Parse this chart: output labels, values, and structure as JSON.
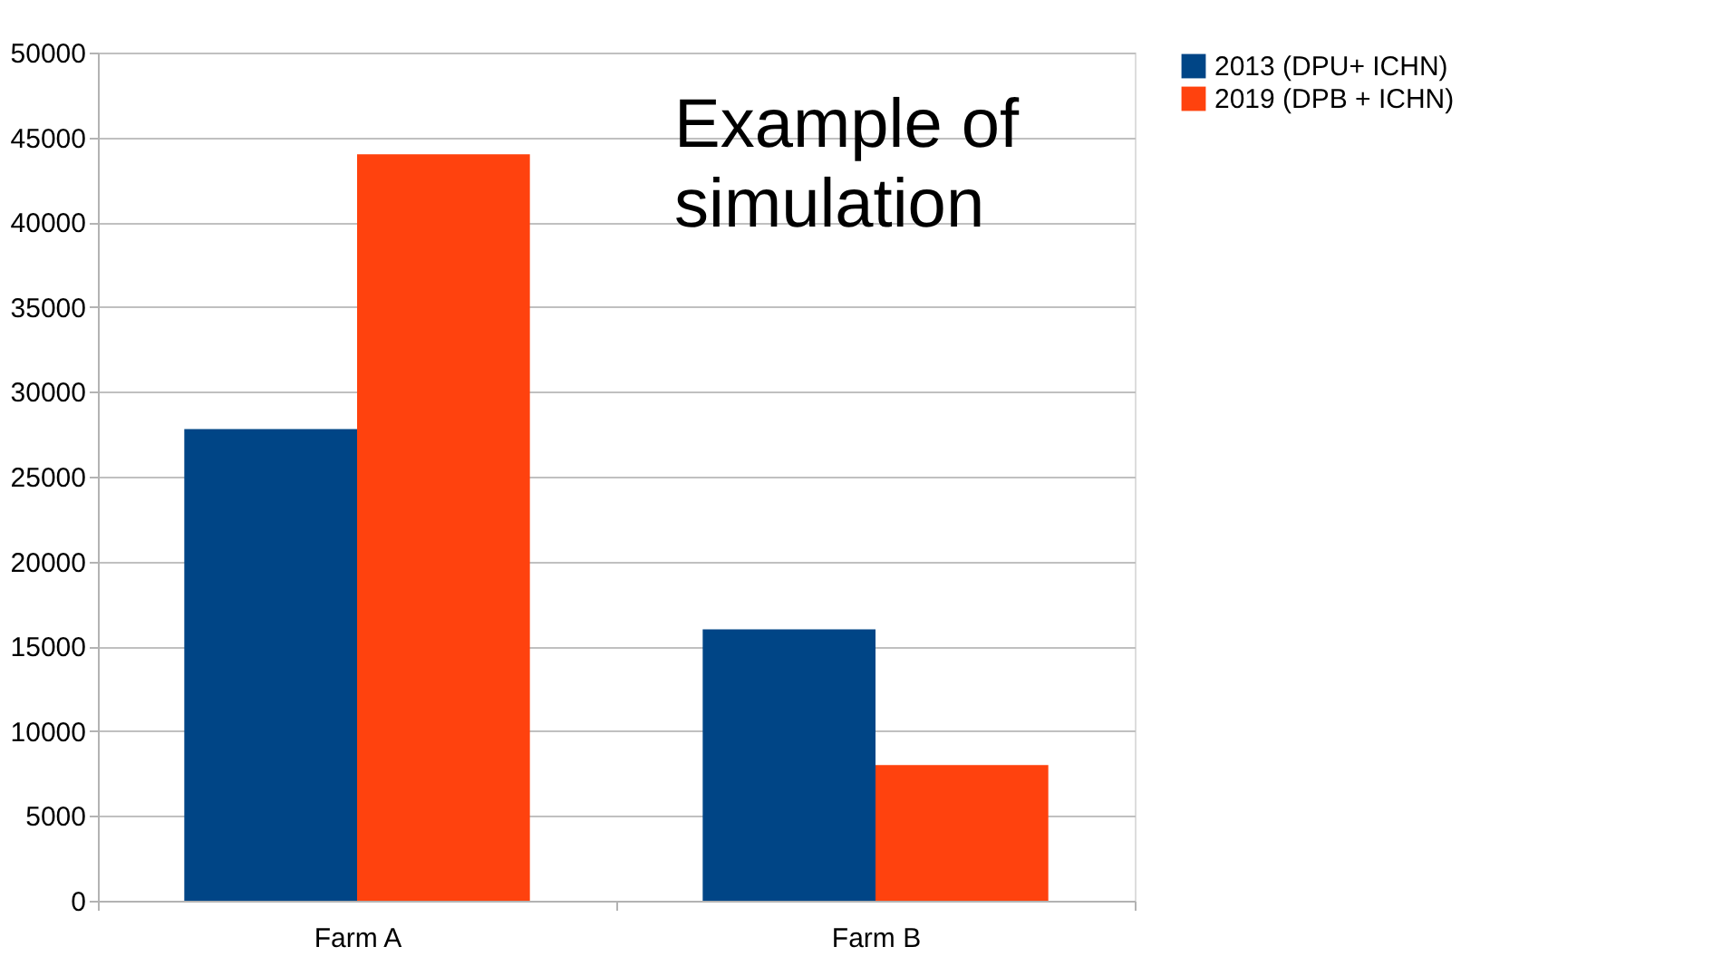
{
  "chart_data": {
    "type": "bar",
    "categories": [
      "Farm A",
      "Farm B"
    ],
    "series": [
      {
        "name": "2013 (DPU+ ICHN)",
        "color": "#004586",
        "values": [
          27800,
          16000
        ]
      },
      {
        "name": "2019 (DPB + ICHN)",
        "color": "#ff420e",
        "values": [
          44000,
          8000
        ]
      }
    ],
    "ylim": [
      0,
      50000
    ],
    "yticks": [
      0,
      5000,
      10000,
      15000,
      20000,
      25000,
      30000,
      35000,
      40000,
      45000,
      50000
    ],
    "annotations": [
      {
        "text": "Example of\nsimulation"
      }
    ],
    "grid": "y",
    "legend": "right"
  }
}
